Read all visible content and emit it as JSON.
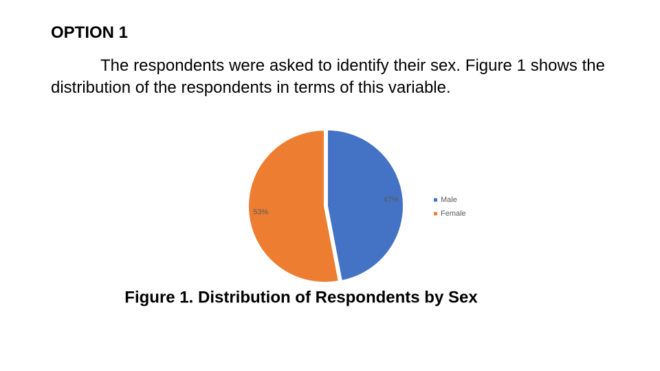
{
  "heading": "OPTION 1",
  "paragraph": "The respondents were asked to identify their sex. Figure 1 shows the distribution of the respondents in terms of this variable.",
  "chart_data": {
    "type": "pie",
    "title": "Figure 1. Distribution of Respondents by Sex",
    "categories": [
      "Male",
      "Female"
    ],
    "values": [
      47,
      53
    ],
    "value_labels": [
      "47%",
      "53%"
    ],
    "colors": [
      "#4472c4",
      "#ed7d31"
    ],
    "legend": "right"
  }
}
